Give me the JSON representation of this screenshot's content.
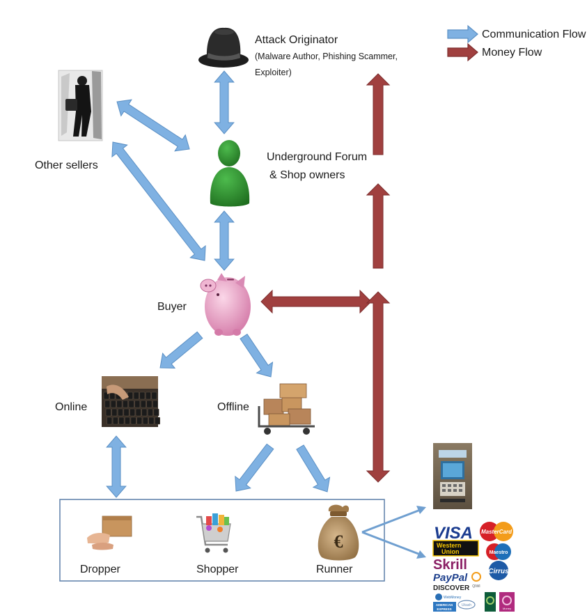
{
  "legend": {
    "communication": "Communication Flow",
    "money": "Money Flow"
  },
  "nodes": {
    "attack_originator": {
      "title": "Attack Originator",
      "subtitle_line1": "(Malware Author, Phishing Scammer,",
      "subtitle_line2": "Exploiter)"
    },
    "forum": {
      "line1": "Underground Forum",
      "line2": "& Shop owners"
    },
    "other_sellers": "Other sellers",
    "buyer": "Buyer",
    "online": "Online",
    "offline": "Offline",
    "dropper": "Dropper",
    "shopper": "Shopper",
    "runner": "Runner"
  },
  "payment_logos": {
    "visa": "VISA",
    "mastercard": "MasterCard",
    "western_union_1": "Western",
    "western_union_2": "Union",
    "skrill": "Skrill",
    "maestro": "Maestro",
    "paypal": "PayPal",
    "cirrus": "Cirrus",
    "discover": "DISCOVER",
    "qiwi": "QIWI",
    "webmoney": "WebMoney",
    "amex_1": "AMERICAN",
    "amex_2": "EXPRESS",
    "ukash": "Ukash",
    "moneybookers": "Money",
    "runner_symbol": "€"
  },
  "colors": {
    "communication": "#7fb1e2",
    "communication_edge": "#5a8fc4",
    "money": "#a0403f",
    "money_edge": "#7d2d2d",
    "box_border": "#5b7fa8",
    "forum_figure": "#2e8b2e",
    "piggy": "#e9a8c8"
  }
}
